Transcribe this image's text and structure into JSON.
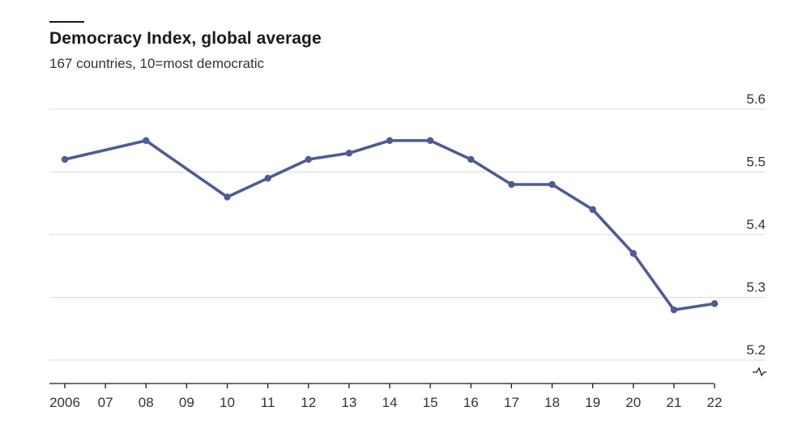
{
  "chart_data": {
    "type": "line",
    "title": "Democracy Index, global average",
    "subtitle": "167 countries, 10=most democratic",
    "x": [
      "2006",
      "07",
      "08",
      "09",
      "10",
      "11",
      "12",
      "13",
      "14",
      "15",
      "16",
      "17",
      "18",
      "19",
      "20",
      "21",
      "22"
    ],
    "series": [
      {
        "x": [
          "2006",
          "08",
          "10",
          "11",
          "12",
          "13",
          "14",
          "15",
          "16",
          "17",
          "18",
          "19",
          "20",
          "21",
          "22"
        ],
        "values": [
          5.52,
          5.55,
          5.46,
          5.49,
          5.52,
          5.53,
          5.55,
          5.55,
          5.52,
          5.48,
          5.48,
          5.44,
          5.37,
          5.28,
          5.29
        ]
      }
    ],
    "y_ticks": [
      "5.2",
      "5.3",
      "5.4",
      "5.5",
      "5.6"
    ],
    "ylim": [
      5.2,
      5.6
    ],
    "y_axis_break": true,
    "grid": true,
    "colors": {
      "line": "#4f5b93",
      "grid": "#d9d9d9",
      "axis": "#1a1a1a",
      "accent_rule": "#1a1a1a"
    }
  }
}
